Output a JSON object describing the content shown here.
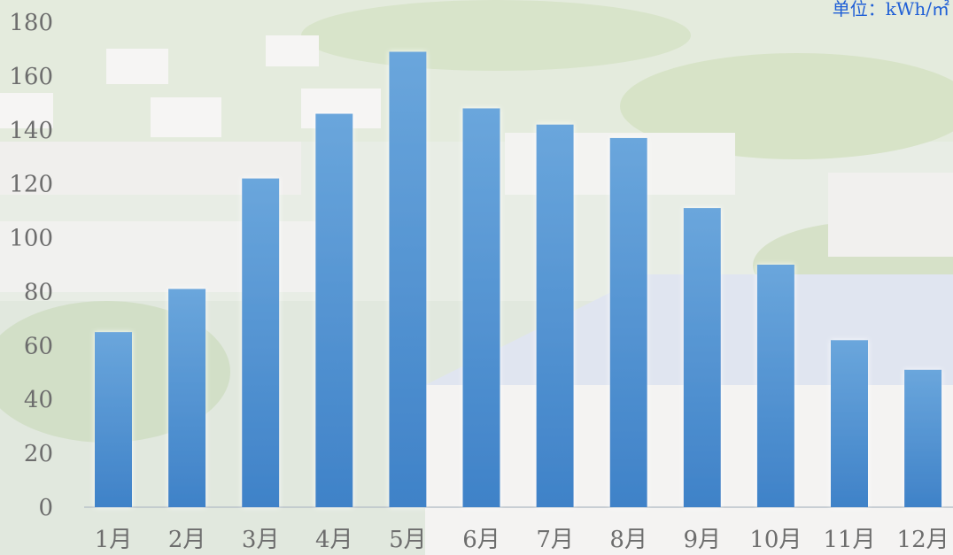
{
  "unit_label": "单位：kWh/㎡",
  "colors": {
    "bar_top": "#6aa6dc",
    "bar_bottom": "#3f82c8",
    "axis": "#b9c2c9",
    "text": "#6d6d6d",
    "unit": "#1f5fd6"
  },
  "chart_data": {
    "type": "bar",
    "categories": [
      "1月",
      "2月",
      "3月",
      "4月",
      "5月",
      "6月",
      "7月",
      "8月",
      "9月",
      "10月",
      "11月",
      "12月"
    ],
    "values": [
      65,
      81,
      122,
      146,
      169,
      148,
      142,
      137,
      111,
      90,
      62,
      51
    ],
    "ylim": [
      0,
      180
    ],
    "yticks": [
      "0",
      "20",
      "40",
      "60",
      "80",
      "100",
      "120",
      "140",
      "160",
      "180"
    ],
    "grid": false
  }
}
